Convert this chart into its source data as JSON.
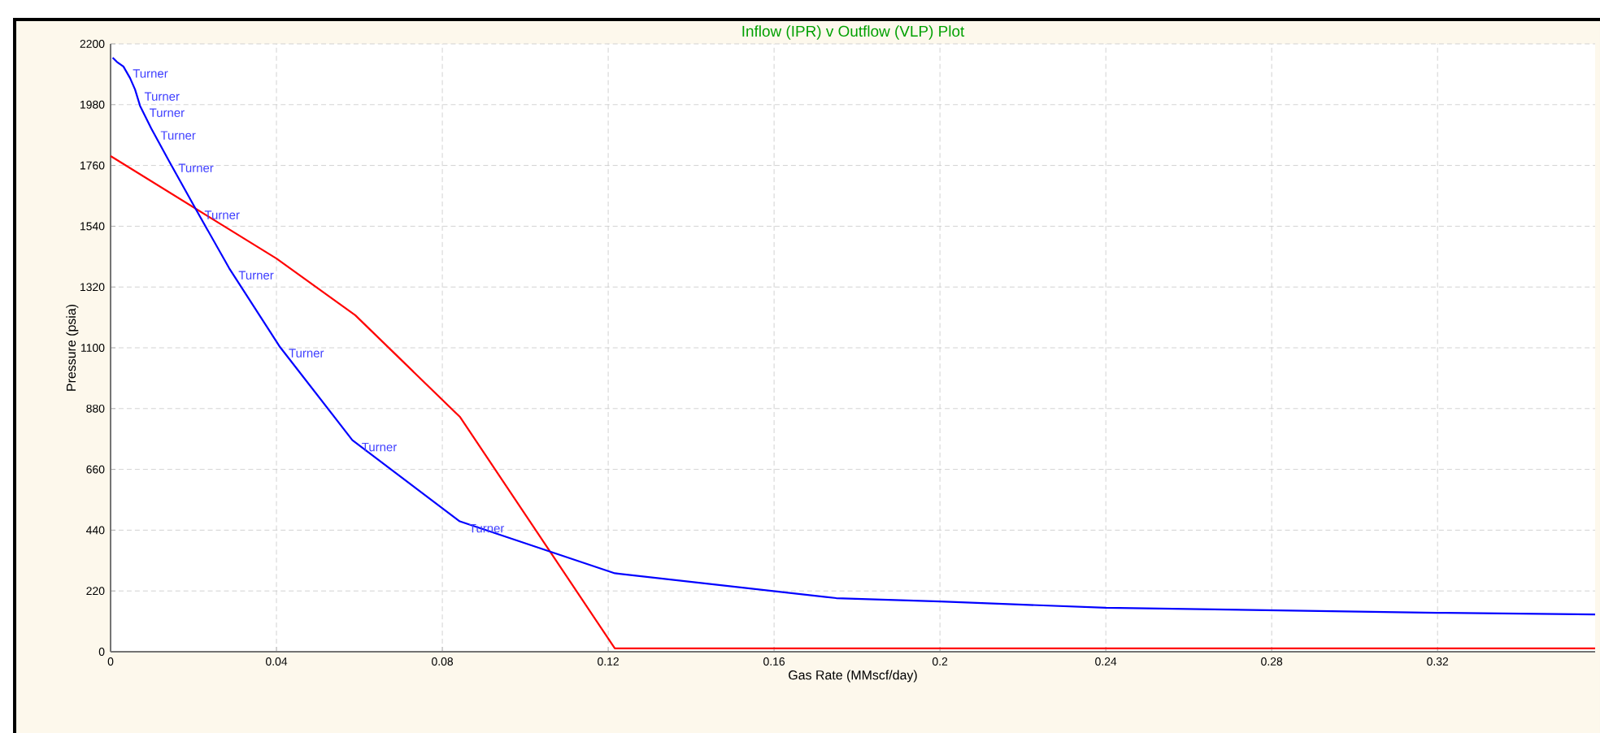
{
  "chart_data": {
    "type": "line",
    "title": "Inflow (IPR) v Outflow (VLP) Plot",
    "xlabel": "Gas Rate  (MMscf/day)",
    "ylabel": "Pressure  (psia)",
    "xlim": [
      0,
      0.358
    ],
    "ylim": [
      0,
      2200
    ],
    "xticks": [
      0,
      0.04,
      0.08,
      0.12,
      0.16,
      0.2,
      0.24,
      0.28,
      0.32
    ],
    "yticks": [
      0,
      220,
      440,
      660,
      880,
      1100,
      1320,
      1540,
      1760,
      1980,
      2200
    ],
    "grid": true,
    "marker": "none",
    "line_style": "solid",
    "series": [
      {
        "color": "#ff0000",
        "x": [
          0,
          0.04,
          0.059,
          0.0843,
          0.1216,
          0.358
        ],
        "values": [
          1794,
          1423,
          1218,
          849,
          12,
          12
        ]
      },
      {
        "color": "#0000ff",
        "x": [
          0.0005,
          0.0015,
          0.0031,
          0.0047,
          0.0059,
          0.0071,
          0.0098,
          0.0141,
          0.0204,
          0.0286,
          0.0407,
          0.0583,
          0.0842,
          0.1216,
          0.175,
          0.2,
          0.24,
          0.28,
          0.32,
          0.358
        ],
        "values": [
          2150,
          2135,
          2118,
          2076,
          2035,
          1976,
          1894,
          1776,
          1606,
          1388,
          1106,
          766,
          472,
          284,
          194,
          182,
          159,
          150,
          141,
          135
        ]
      }
    ],
    "annotations": [
      {
        "text": "Turner",
        "x": 0.0031,
        "y": 2118
      },
      {
        "text": "Turner",
        "x": 0.0059,
        "y": 2035
      },
      {
        "text": "Turner",
        "x": 0.0071,
        "y": 1976
      },
      {
        "text": "Turner",
        "x": 0.0098,
        "y": 1894
      },
      {
        "text": "Turner",
        "x": 0.0141,
        "y": 1776
      },
      {
        "text": "Turner",
        "x": 0.0204,
        "y": 1606
      },
      {
        "text": "Turner",
        "x": 0.0286,
        "y": 1388
      },
      {
        "text": "Turner",
        "x": 0.0407,
        "y": 1106
      },
      {
        "text": "Turner",
        "x": 0.0583,
        "y": 766
      },
      {
        "text": "Turner",
        "x": 0.0842,
        "y": 472
      }
    ]
  }
}
